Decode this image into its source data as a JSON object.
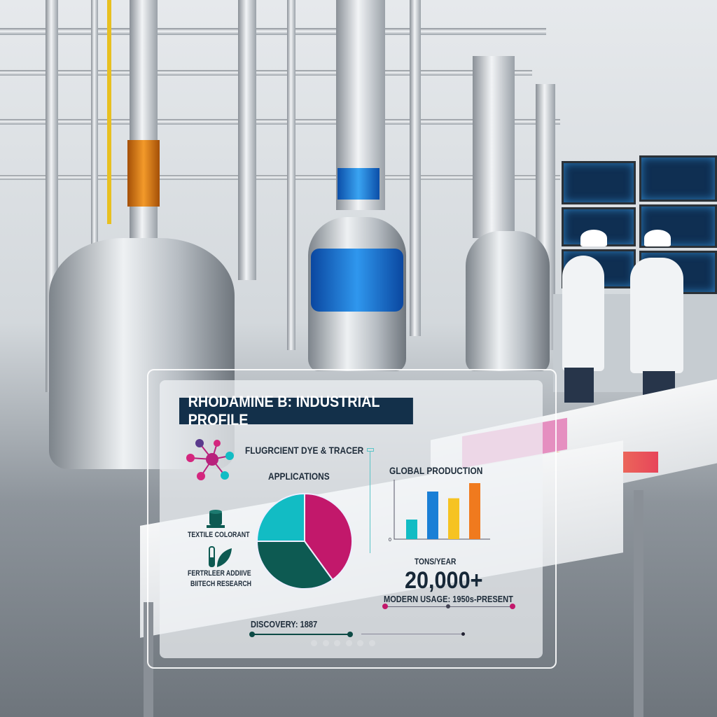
{
  "title": "RHODAMINE B: INDUSTRIAL PROFILE",
  "feature_label": "FLUGRCIENT DYE & TRACER",
  "applications": {
    "heading": "APPLICATIONS",
    "items": [
      "TEXTILE COLORANT",
      "FERTRLEER ADDIIVE",
      "BIITECH RESEARCH"
    ]
  },
  "production": {
    "heading": "GLOBAL PRODUCTION",
    "unit": "TONS/YEAR",
    "value": "20,000+"
  },
  "timeline": {
    "modern_usage": "MODERN USAGE: 1950s-PRESENT",
    "discovery": "DISCOVERY: 1887"
  },
  "pagination": {
    "count": 6
  },
  "colors": {
    "magenta": "#c2186b",
    "dark_teal": "#0d5a52",
    "cyan": "#12bcc4",
    "navy": "#13304a",
    "blue": "#1a7fd6",
    "yellow": "#f6c322",
    "orange": "#f07a1e"
  },
  "chart_data": [
    {
      "type": "pie",
      "title": "APPLICATIONS",
      "values": [
        40,
        35,
        25
      ],
      "colors": [
        "#c2186b",
        "#0d5a52",
        "#12bcc4"
      ]
    },
    {
      "type": "bar",
      "title": "GLOBAL PRODUCTION",
      "xlabel": "TONS/YEAR",
      "y_tick_zero": "0",
      "values": [
        35,
        85,
        73,
        100
      ],
      "colors": [
        "#12bcc4",
        "#1a7fd6",
        "#f6c322",
        "#f07a1e"
      ]
    }
  ]
}
